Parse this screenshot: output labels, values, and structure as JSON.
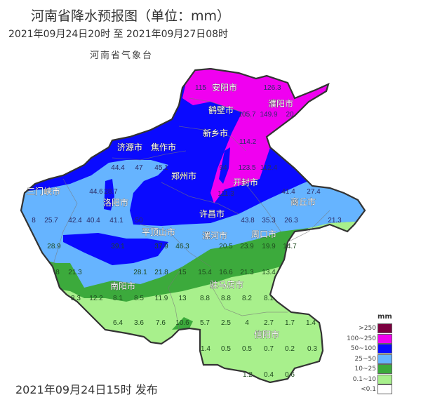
{
  "header": {
    "title": "河南省降水预报图（单位：mm）",
    "period": "2021年09月24日20时  至  2021年09月27日08时",
    "agency": "河南省气象台"
  },
  "footer": {
    "issued": "2021年09月24日15时 发布"
  },
  "legend": {
    "unit": "mm",
    "items": [
      {
        "label": ">250",
        "color": "#7b0040"
      },
      {
        "label": "100~250",
        "color": "#f000f0"
      },
      {
        "label": "50~100",
        "color": "#0a0aff"
      },
      {
        "label": "25~50",
        "color": "#66b4ff"
      },
      {
        "label": "10~25",
        "color": "#3caa3c"
      },
      {
        "label": "0.1~10",
        "color": "#a8f08c"
      },
      {
        "label": "<0.1",
        "color": "#ffffff"
      }
    ]
  },
  "map": {
    "cities": [
      "安阳市",
      "濮阳市",
      "鹤壁市",
      "新乡市",
      "济源市",
      "焦作市",
      "郑州市",
      "开封市",
      "三门峡市",
      "洛阳市",
      "许昌市",
      "商丘市",
      "平顶山市",
      "漯河市",
      "周口市",
      "南阳市",
      "驻马店市",
      "信阳市"
    ],
    "values": [
      "115",
      "126.3",
      "105.7",
      "149.9",
      "20",
      "114.2",
      "44.4",
      "47",
      "45.1",
      "44.6",
      "28.7",
      "8",
      "25.7",
      "42.4",
      "40.4",
      "41.1",
      "50",
      "94",
      "123.5",
      "112.4",
      "111.3",
      "41.4",
      "27.4",
      "43.8",
      "35.3",
      "26.3",
      "21.3",
      "28.9",
      "39.1",
      "37.9",
      "46.3",
      "8",
      "21.3",
      "28.1",
      "21.8",
      "15",
      "8.3",
      "12.2",
      "8.1",
      "8.5",
      "11.9",
      "13",
      "6.4",
      "3.6",
      "7.6",
      "10.6",
      "20.5",
      "23.9",
      "19.9",
      "14.7",
      "15.4",
      "16.6",
      "21.3",
      "13.4",
      "8.8",
      "8.8",
      "8.2",
      "8.1",
      "5.7",
      "2.5",
      "4",
      "2.7",
      "1.7",
      "1.4",
      "1.4",
      "0.5",
      "0.5",
      "0.7",
      "0.2",
      "0.3",
      "1.2",
      "0.4",
      "0.6"
    ]
  }
}
